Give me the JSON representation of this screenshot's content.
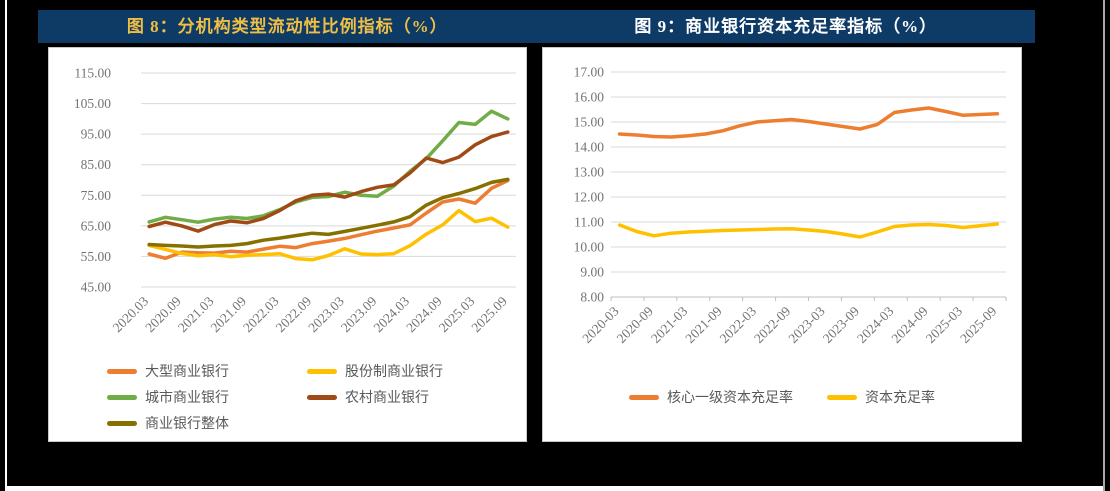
{
  "page": {
    "background": "#000000",
    "bottom_strip_color": "#ffffff",
    "left_edge_color": "#ffffff",
    "right_edge_color": "#a8a8a8"
  },
  "header": {
    "bar_color": "#0E3A66",
    "figures": [
      {
        "label": "图 8：分机构类型流动性比例指标（%）",
        "color": "#EEBE45"
      },
      {
        "label": "图 9：商业银行资本充足率指标（%）",
        "color": "#FFFFFF"
      }
    ]
  },
  "chart_data": [
    {
      "type": "line",
      "title": "图 8：分机构类型流动性比例指标（%）",
      "xlabel": "",
      "ylabel": "",
      "ylim": [
        45,
        115
      ],
      "ytick_step": 10,
      "ytick_format_decimals": 2,
      "grid": true,
      "grid_color": "#d9d9d9",
      "axis_text_color": "#737373",
      "legend_position": "bottom",
      "legend_text_color": "#595959",
      "axis_line": false,
      "label_every": 2,
      "x": [
        "2020.03",
        "2020.06",
        "2020.09",
        "2020.12",
        "2021.03",
        "2021.06",
        "2021.09",
        "2021.12",
        "2022.03",
        "2022.06",
        "2022.09",
        "2022.12",
        "2023.03",
        "2023.06",
        "2023.09",
        "2023.12",
        "2024.03",
        "2024.06",
        "2024.09",
        "2024.12",
        "2025.03",
        "2025.06",
        "2025.09"
      ],
      "x_axis_visible_labels": [
        "2020.03",
        "2020.09",
        "2021.03",
        "2021.09",
        "2022.03",
        "2022.09",
        "2023.03",
        "2023.09",
        "2024.03",
        "2024.09",
        "2025.03",
        "2025.09"
      ],
      "series": [
        {
          "name": "大型商业银行",
          "color": "#ED7D31",
          "values": [
            55.8,
            54.4,
            56.4,
            56.2,
            56.1,
            56.7,
            56.4,
            57.4,
            58.3,
            57.9,
            59.2,
            60.0,
            60.9,
            62.1,
            63.3,
            64.3,
            65.3,
            69.2,
            72.8,
            73.8,
            72.4,
            77.3,
            79.8
          ]
        },
        {
          "name": "股份制商业银行",
          "color": "#FFC000",
          "values": [
            58.6,
            57.3,
            56.0,
            55.2,
            55.6,
            54.9,
            55.4,
            55.6,
            55.9,
            54.3,
            53.9,
            55.3,
            57.5,
            55.8,
            55.6,
            55.9,
            58.5,
            62.3,
            65.3,
            70.0,
            66.4,
            67.5,
            64.6
          ]
        },
        {
          "name": "城市商业银行",
          "color": "#70AD47",
          "values": [
            66.3,
            67.8,
            67.0,
            66.2,
            67.2,
            67.8,
            67.4,
            68.3,
            70.3,
            72.8,
            74.3,
            74.6,
            76.0,
            75.0,
            74.7,
            78.0,
            82.8,
            87.0,
            92.8,
            98.8,
            98.2,
            102.5,
            100.0
          ]
        },
        {
          "name": "农村商业银行",
          "color": "#A04A15",
          "values": [
            64.8,
            66.2,
            65.0,
            63.3,
            65.4,
            66.6,
            66.0,
            67.4,
            70.0,
            73.2,
            75.0,
            75.4,
            74.4,
            76.2,
            77.6,
            78.4,
            82.3,
            87.2,
            85.7,
            87.5,
            91.5,
            94.2,
            95.7
          ]
        },
        {
          "name": "商业银行整体",
          "color": "#857000",
          "values": [
            58.9,
            58.6,
            58.4,
            58.1,
            58.4,
            58.6,
            59.2,
            60.3,
            61.0,
            61.8,
            62.6,
            62.2,
            63.2,
            64.2,
            65.2,
            66.3,
            68.0,
            71.8,
            74.2,
            75.6,
            77.2,
            79.2,
            80.2
          ]
        }
      ]
    },
    {
      "type": "line",
      "title": "图 9：商业银行资本充足率指标（%）",
      "xlabel": "",
      "ylabel": "",
      "ylim": [
        8,
        17
      ],
      "ytick_step": 1,
      "ytick_format_decimals": 2,
      "grid": true,
      "grid_color": "#d9d9d9",
      "axis_text_color": "#737373",
      "legend_position": "bottom",
      "legend_text_color": "#595959",
      "axis_line": true,
      "axis_line_color": "#bfbfbf",
      "label_every": 2,
      "x": [
        "2020-03",
        "2020-06",
        "2020-09",
        "2020-12",
        "2021-03",
        "2021-06",
        "2021-09",
        "2021-12",
        "2022-03",
        "2022-06",
        "2022-09",
        "2022-12",
        "2023-03",
        "2023-06",
        "2023-09",
        "2023-12",
        "2024-03",
        "2024-06",
        "2024-09",
        "2024-12",
        "2025-03",
        "2025-06",
        "2025-09"
      ],
      "x_axis_visible_labels": [
        "2020-03",
        "2020-09",
        "2021-03",
        "2021-09",
        "2022-03",
        "2022-09",
        "2023-03",
        "2023-09",
        "2024-03",
        "2024-09",
        "2025-03",
        "2025-09"
      ],
      "series": [
        {
          "name": "核心一级资本充足率",
          "color": "#ED7D31",
          "values": [
            14.52,
            14.48,
            14.42,
            14.4,
            14.45,
            14.52,
            14.65,
            14.85,
            15.0,
            15.05,
            15.1,
            15.02,
            14.92,
            14.82,
            14.72,
            14.9,
            15.38,
            15.48,
            15.56,
            15.42,
            15.27,
            15.3,
            15.33
          ]
        },
        {
          "name": "资本充足率",
          "color": "#FFC000",
          "values": [
            10.88,
            10.62,
            10.45,
            10.55,
            10.6,
            10.63,
            10.66,
            10.68,
            10.7,
            10.72,
            10.73,
            10.68,
            10.62,
            10.52,
            10.4,
            10.6,
            10.82,
            10.88,
            10.9,
            10.86,
            10.78,
            10.85,
            10.92
          ]
        }
      ]
    }
  ]
}
